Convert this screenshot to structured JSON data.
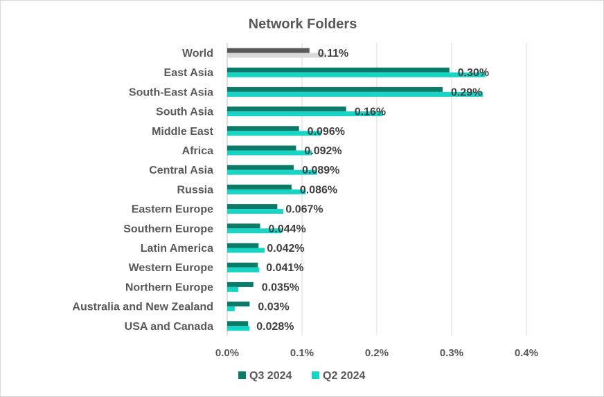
{
  "chart_data": {
    "type": "bar",
    "orientation": "horizontal",
    "title": "Network Folders",
    "categories": [
      "World",
      "East Asia",
      "South-East Asia",
      "South Asia",
      "Middle East",
      "Africa",
      "Central Asia",
      "Russia",
      "Eastern Europe",
      "Southern Europe",
      "Latin America",
      "Western Europe",
      "Northern Europe",
      "Australia and New Zealand",
      "USA and Canada"
    ],
    "series": [
      {
        "name": "Q3 2024",
        "color": "#0b7a69",
        "world_color": "#595959",
        "values": [
          0.11,
          0.297,
          0.288,
          0.159,
          0.096,
          0.092,
          0.089,
          0.086,
          0.067,
          0.044,
          0.042,
          0.041,
          0.035,
          0.03,
          0.028
        ]
      },
      {
        "name": "Q2 2024",
        "color": "#17d4c4",
        "world_color": "#d9d9d9",
        "values": [
          0.132,
          0.345,
          0.342,
          0.208,
          0.125,
          0.113,
          0.12,
          0.105,
          0.075,
          0.073,
          0.05,
          0.043,
          0.015,
          0.01,
          0.03
        ]
      }
    ],
    "data_labels": [
      "0.11%",
      "0.30%",
      "0.29%",
      "0.16%",
      "0.096%",
      "0.092%",
      "0.089%",
      "0.086%",
      "0.067%",
      "0.044%",
      "0.042%",
      "0.041%",
      "0.035%",
      "0.03%",
      "0.028%"
    ],
    "xaxis": {
      "ticks": [
        0,
        0.1,
        0.2,
        0.3,
        0.4
      ],
      "tick_labels": [
        "0.0%",
        "0.1%",
        "0.2%",
        "0.3%",
        "0.4%"
      ],
      "xlim": [
        0,
        0.4
      ]
    },
    "grid": true,
    "legend_position": "bottom",
    "xlabel": "",
    "ylabel": ""
  }
}
